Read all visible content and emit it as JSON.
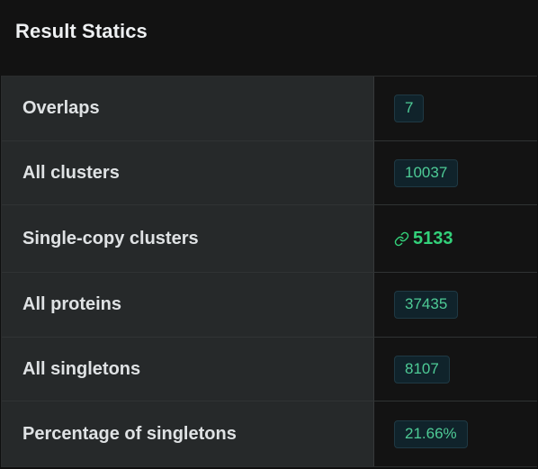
{
  "header": {
    "title": "Result Statics"
  },
  "colors": {
    "badge_text": "#4ecb96",
    "link_text": "#33d17a",
    "label_bg": "#26292a",
    "value_bg": "#131313"
  },
  "rows": [
    {
      "label": "Overlaps",
      "value": "7",
      "kind": "badge"
    },
    {
      "label": "All clusters",
      "value": "10037",
      "kind": "badge"
    },
    {
      "label": "Single-copy clusters",
      "value": "5133",
      "kind": "link",
      "icon": "link-icon"
    },
    {
      "label": "All proteins",
      "value": "37435",
      "kind": "badge"
    },
    {
      "label": "All singletons",
      "value": "8107",
      "kind": "badge"
    },
    {
      "label": "Percentage of singletons",
      "value": "21.66%",
      "kind": "badge"
    }
  ]
}
